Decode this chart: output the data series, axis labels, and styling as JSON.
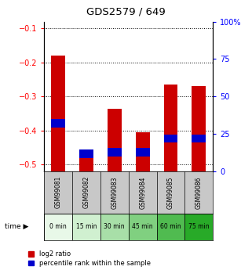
{
  "title": "GDS2579 / 649",
  "samples": [
    "GSM99081",
    "GSM99082",
    "GSM99083",
    "GSM99084",
    "GSM99085",
    "GSM99086"
  ],
  "time_labels": [
    "0 min",
    "15 min",
    "30 min",
    "45 min",
    "60 min",
    "75 min"
  ],
  "time_bg_colors": [
    "#e8f8e8",
    "#d0f0d0",
    "#a8dfa8",
    "#80d080",
    "#50bb50",
    "#28aa28"
  ],
  "log2_values": [
    -0.18,
    -0.455,
    -0.335,
    -0.405,
    -0.265,
    -0.27
  ],
  "percentile_values": [
    32,
    12,
    13,
    13,
    22,
    22
  ],
  "bar_color_red": "#cc0000",
  "bar_color_blue": "#0000cc",
  "ylim_left": [
    -0.52,
    -0.08
  ],
  "ylim_right": [
    0,
    100
  ],
  "yticks_left": [
    -0.5,
    -0.4,
    -0.3,
    -0.2,
    -0.1
  ],
  "yticks_right": [
    0,
    25,
    50,
    75,
    100
  ],
  "bg_plot": "#ffffff",
  "sample_bg": "#c8c8c8",
  "legend_log2": "log2 ratio",
  "legend_pct": "percentile rank within the sample"
}
